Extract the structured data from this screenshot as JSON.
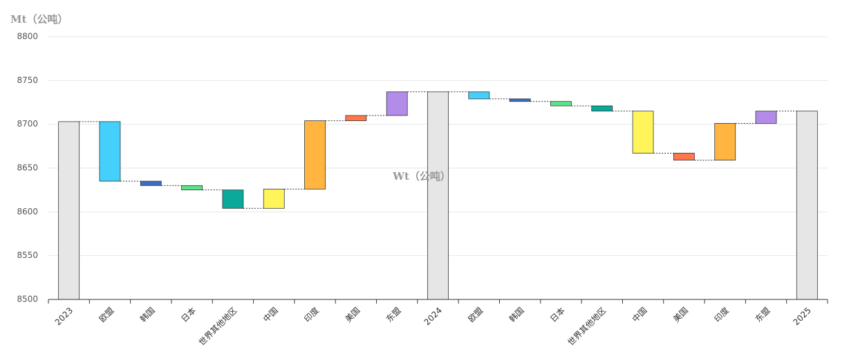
{
  "chart_data": {
    "type": "waterfall",
    "y_axis_title": "Mt（公吨）",
    "watermark": "Wt（公吨）",
    "categories": [
      "2023",
      "欧盟",
      "韩国",
      "日本",
      "世界其他地区",
      "中国",
      "印度",
      "美国",
      "东盟",
      "2024",
      "欧盟",
      "韩国",
      "日本",
      "世界其他地区",
      "中国",
      "美国",
      "印度",
      "东盟",
      "2025"
    ],
    "measure": [
      "total",
      "relative",
      "relative",
      "relative",
      "relative",
      "relative",
      "relative",
      "relative",
      "relative",
      "total",
      "relative",
      "relative",
      "relative",
      "relative",
      "relative",
      "relative",
      "relative",
      "relative",
      "total"
    ],
    "values": [
      8703,
      -68,
      -5,
      -5,
      -21,
      22,
      78,
      6,
      27,
      8737,
      -8,
      -3,
      -5,
      -6,
      -48,
      -8,
      42,
      14,
      8715
    ],
    "colors": [
      "#e6e6e6",
      "#45d0fb",
      "#3a6fc0",
      "#5ce48a",
      "#0aa99a",
      "#fff55a",
      "#ffb540",
      "#ff774a",
      "#b38be9",
      "#e6e6e6",
      "#45d0fb",
      "#3a6fc0",
      "#5ce48a",
      "#0aa99a",
      "#fff55a",
      "#ff774a",
      "#ffb540",
      "#b38be9",
      "#e6e6e6"
    ],
    "ylim": [
      8500,
      8800
    ],
    "yticks": [
      8500,
      8550,
      8600,
      8650,
      8700,
      8750,
      8800
    ],
    "grid": true
  }
}
